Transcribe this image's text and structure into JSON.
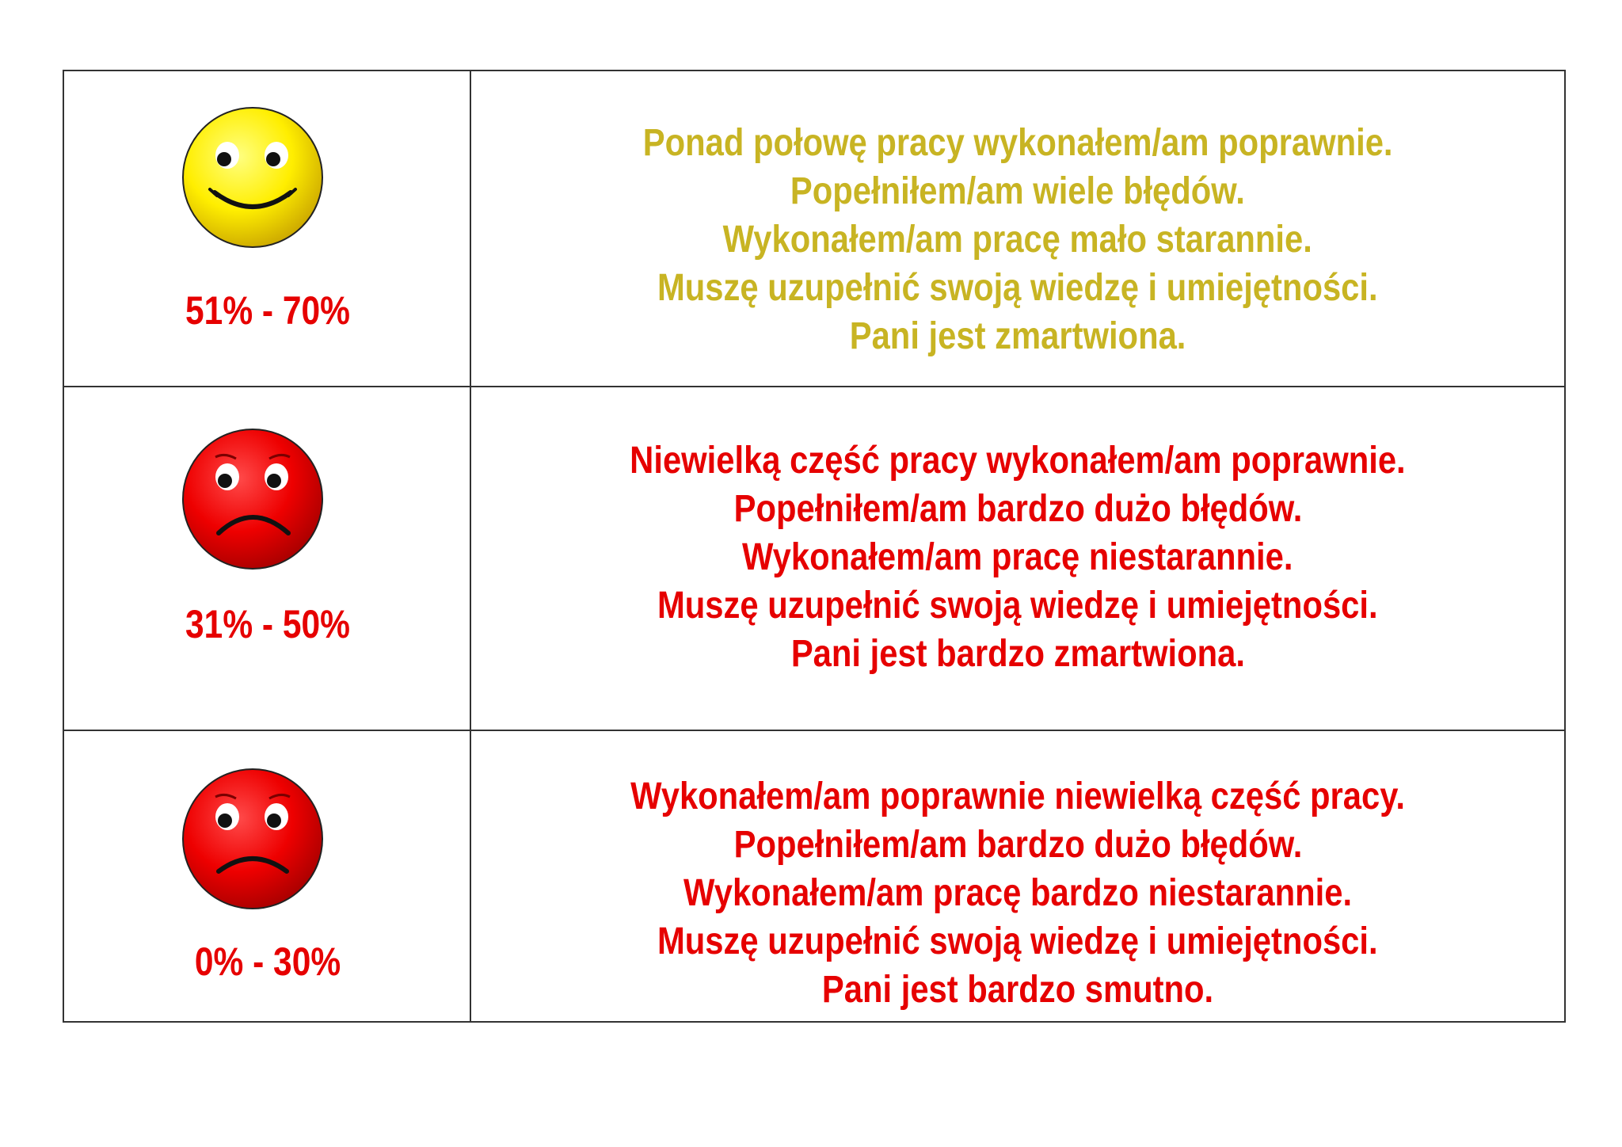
{
  "rows": [
    {
      "mood": "happy",
      "range": "51% - 70%",
      "color": "#c8b423",
      "lines": [
        "Ponad połowę pracy wykonałem/am poprawnie.",
        "Popełniłem/am wiele błędów.",
        "Wykonałem/am pracę mało starannie.",
        "Muszę uzupełnić swoją wiedzę i umiejętności.",
        "Pani jest zmartwiona."
      ]
    },
    {
      "mood": "sad",
      "range": "31% - 50%",
      "color": "#e60000",
      "lines": [
        "Niewielką część pracy wykonałem/am poprawnie.",
        "Popełniłem/am bardzo dużo błędów.",
        "Wykonałem/am pracę niestarannie.",
        "Muszę uzupełnić swoją wiedzę i umiejętności.",
        "Pani jest bardzo zmartwiona."
      ]
    },
    {
      "mood": "sad",
      "range": "0% - 30%",
      "color": "#e60000",
      "lines": [
        "Wykonałem/am poprawnie niewielką część pracy.",
        "Popełniłem/am bardzo dużo błędów.",
        "Wykonałem/am pracę bardzo niestarannie.",
        "Muszę uzupełnić swoją wiedzę i umiejętności.",
        "Pani jest bardzo smutno."
      ]
    }
  ],
  "range_color": "#e60000"
}
